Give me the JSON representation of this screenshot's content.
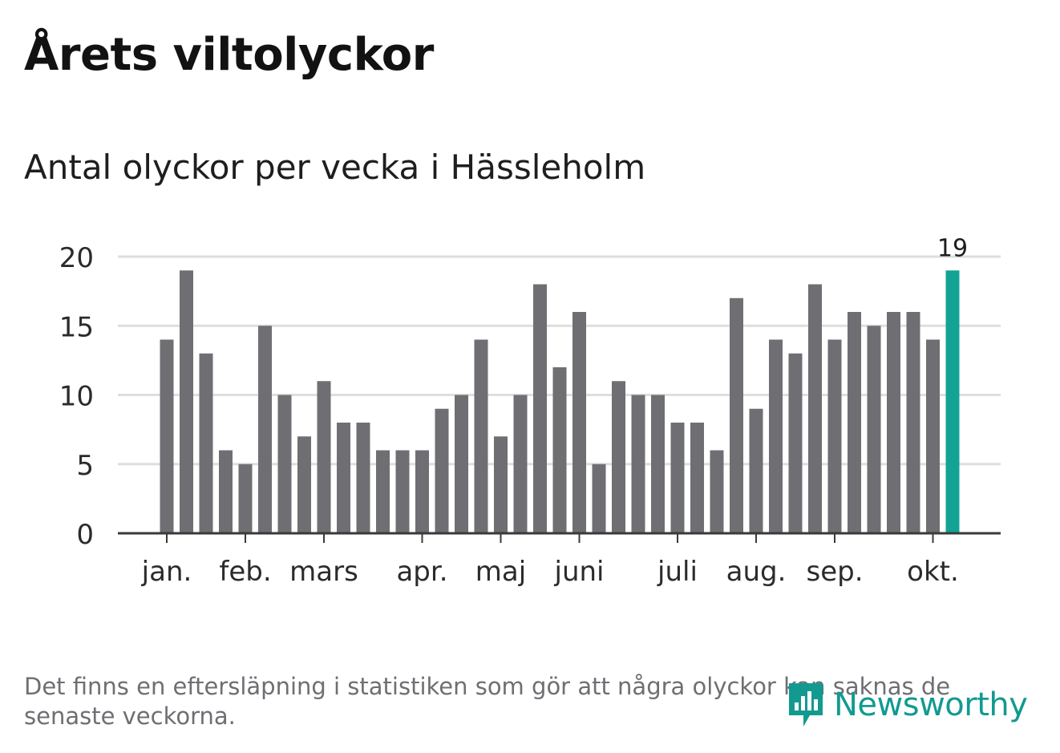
{
  "title": "Årets viltolyckor",
  "subtitle": "Antal olyckor per vecka i Hässleholm",
  "footnote": "Det finns en eftersläpning i statistiken som gör att några olyckor kan saknas de senaste veckorna.",
  "brand": {
    "name": "Newsworthy",
    "icon": "bar-chart-speech-bubble-icon",
    "color": "#129a91"
  },
  "chart_data": {
    "type": "bar",
    "title": "",
    "xlabel": "",
    "ylabel": "",
    "ylim": [
      0,
      20
    ],
    "yticks": [
      0,
      5,
      10,
      15,
      20
    ],
    "grid": true,
    "values": [
      14,
      19,
      13,
      6,
      5,
      15,
      10,
      7,
      11,
      8,
      8,
      6,
      6,
      6,
      9,
      10,
      14,
      7,
      10,
      18,
      12,
      16,
      5,
      11,
      10,
      10,
      8,
      8,
      6,
      17,
      9,
      14,
      13,
      18,
      14,
      16,
      15,
      16,
      16,
      14,
      19
    ],
    "month_labels": [
      {
        "label": "jan.",
        "bar": 0
      },
      {
        "label": "feb.",
        "bar": 4
      },
      {
        "label": "mars",
        "bar": 8
      },
      {
        "label": "apr.",
        "bar": 13
      },
      {
        "label": "maj",
        "bar": 17
      },
      {
        "label": "juni",
        "bar": 21
      },
      {
        "label": "juli",
        "bar": 26
      },
      {
        "label": "aug.",
        "bar": 30
      },
      {
        "label": "sep.",
        "bar": 34
      },
      {
        "label": "okt.",
        "bar": 39
      }
    ],
    "highlight": {
      "bar": 40,
      "label": "19"
    },
    "colors": {
      "bar": "#6f6e73",
      "highlight": "#13a395",
      "grid": "#dedede",
      "axis": "#3a3a3a"
    }
  }
}
